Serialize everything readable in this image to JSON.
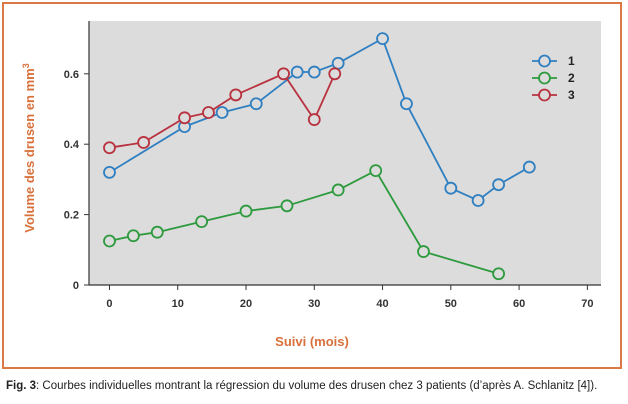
{
  "chart_data": {
    "type": "line",
    "xlabel": "Suivi (mois)",
    "ylabel": "Volume des drusen en mm",
    "ylabel_superscript": "3",
    "xlim": [
      -3,
      72
    ],
    "ylim": [
      0,
      0.75
    ],
    "x_ticks": [
      "0",
      "10",
      "20",
      "30",
      "40",
      "50",
      "60",
      "70"
    ],
    "y_ticks": [
      "0",
      "0.2",
      "0.4",
      "0.6"
    ],
    "grid": false,
    "legend_position": "top-right",
    "plot_background": "#dcdcdc",
    "series": [
      {
        "name": "1",
        "color": "#2f7fc1",
        "points": [
          [
            0,
            0.32
          ],
          [
            11,
            0.45
          ],
          [
            16.5,
            0.49
          ],
          [
            21.5,
            0.515
          ],
          [
            27.5,
            0.605
          ],
          [
            30,
            0.605
          ],
          [
            33.5,
            0.63
          ],
          [
            40,
            0.7
          ],
          [
            43.5,
            0.515
          ],
          [
            50,
            0.275
          ],
          [
            54,
            0.24
          ],
          [
            57,
            0.285
          ],
          [
            61.5,
            0.335
          ]
        ]
      },
      {
        "name": "2",
        "color": "#2e9a3e",
        "points": [
          [
            0,
            0.125
          ],
          [
            3.5,
            0.14
          ],
          [
            7,
            0.15
          ],
          [
            13.5,
            0.18
          ],
          [
            20,
            0.21
          ],
          [
            26,
            0.225
          ],
          [
            33.5,
            0.27
          ],
          [
            39,
            0.325
          ],
          [
            46,
            0.095
          ],
          [
            57,
            0.032
          ]
        ]
      },
      {
        "name": "3",
        "color": "#b8323f",
        "points": [
          [
            0,
            0.39
          ],
          [
            5,
            0.405
          ],
          [
            11,
            0.475
          ],
          [
            14.5,
            0.49
          ],
          [
            18.5,
            0.54
          ],
          [
            25.5,
            0.6
          ],
          [
            30,
            0.47
          ],
          [
            33,
            0.6
          ]
        ]
      }
    ]
  },
  "caption": {
    "label": "Fig. 3",
    "text": ": Courbes individuelles montrant la régression du volume des drusen chez 3 patients (d’après A. Schlanitz [4])."
  }
}
